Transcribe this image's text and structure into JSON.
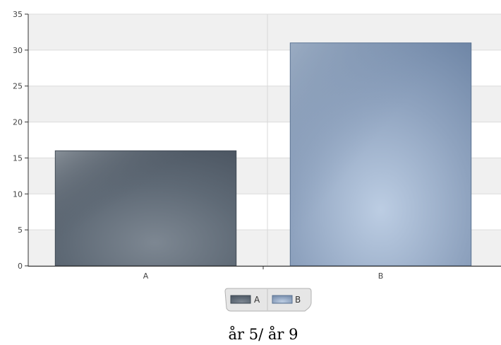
{
  "chart_data": {
    "type": "bar",
    "categories": [
      "A",
      "B"
    ],
    "values": [
      16,
      31
    ],
    "ylim": [
      0,
      35
    ],
    "yticks": [
      0,
      5,
      10,
      15,
      20,
      25,
      30,
      35
    ],
    "grid": true,
    "legend": {
      "placement": "bottom-center",
      "entries": [
        "A",
        "B"
      ]
    },
    "caption": "år 5/ år 9",
    "colors": {
      "A": "#5f6a76",
      "B": "#93a8c4"
    }
  }
}
